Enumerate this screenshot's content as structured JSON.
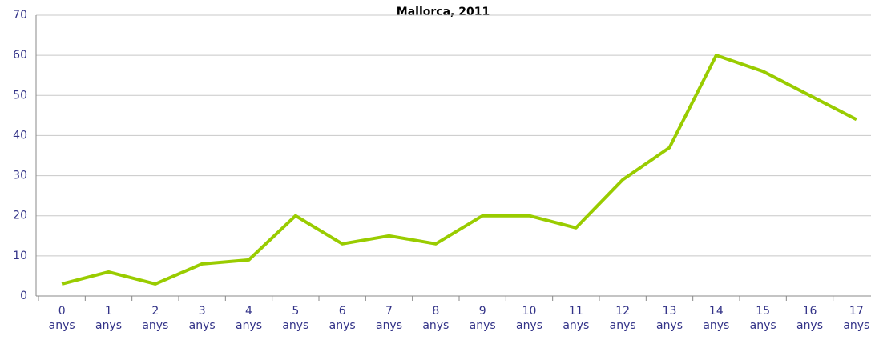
{
  "chart_data": {
    "type": "line",
    "title": "Mallorca, 2011",
    "categories": [
      "0 anys",
      "1 anys",
      "2 anys",
      "3 anys",
      "4 anys",
      "5 anys",
      "6 anys",
      "7 anys",
      "8 anys",
      "9 anys",
      "10 anys",
      "11 anys",
      "12 anys",
      "13 anys",
      "14 anys",
      "15 anys",
      "16 anys",
      "17 anys"
    ],
    "series": [
      {
        "color": "#99cc00",
        "values": [
          3,
          6,
          3,
          8,
          9,
          20,
          13,
          15,
          13,
          20,
          20,
          17,
          29,
          37,
          60,
          56,
          50,
          44
        ]
      }
    ],
    "ylim": [
      0,
      70
    ],
    "yticks": [
      0,
      10,
      20,
      30,
      40,
      50,
      60,
      70
    ],
    "grid": true
  }
}
